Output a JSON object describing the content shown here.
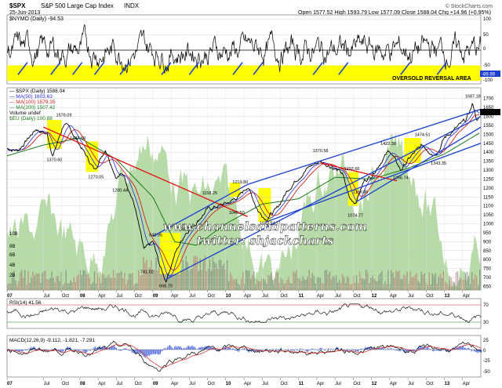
{
  "header": {
    "symbol": "$SPX",
    "name": "S&P 500 Large Cap Index",
    "exchange": "INDX",
    "date": "25-Jun-2013",
    "ohlc": "Open 1577.52  High 1593.79  Low 1577.09  Close 1588.04  Chg +14.96 (+0.95%)",
    "brand": "© StockCharts.com"
  },
  "nymo": {
    "legend": "$NYMO (Daily) -94.53",
    "ticks": [
      "100",
      "50",
      "0",
      "-50",
      "-100"
    ],
    "zone_label": "OVERSOLD REVERSAL AREA",
    "level_label": "-89.99"
  },
  "annotation": {
    "lines": [
      "NYMO Daily - OF THE LAST 22 NYMO LOWS IN THE REVERSAL ZONE SINCE THE START OF",
      "2007, 10 SHOWED MARKED POSITIVE DIVERGENCE AT THE LOW",
      "THE CURRENT LOW IS ALSO SHOWING VERY MARKED POSITIVE DIVERGENCE AND ALL OF",
      "THE LOWS WITH POSITIVE DIVERGENCE DELIVERED STRONG BOUNCES",
      "THE LAST THREE OF THESE LOWS WERE THE MAIN LOWS IN 2010, 2011 AND 2012"
    ],
    "watermark1": "www.channelsandpatterns.com",
    "watermark2": "twitter: shjackcharts"
  },
  "legend": {
    "l1": "— $SPX (Daily) 1588.04",
    "l2": "— MA(50) 1603.63",
    "l3": "— MA(100) 1579.35",
    "l4": "— MA(200) 1507.42",
    "l5": "Volume undef",
    "l6": "$EU (Daily) 100.88"
  },
  "price_labels": [
    {
      "text": "1576.09",
      "date": 2007.78,
      "price": 1600
    },
    {
      "text": "1370.60",
      "date": 2007.65,
      "price": 1350
    },
    {
      "text": "1447.69",
      "date": 2007.97,
      "price": 1470
    },
    {
      "text": "1270.05",
      "date": 2008.22,
      "price": 1255
    },
    {
      "text": "1200.44",
      "date": 2008.55,
      "price": 1180
    },
    {
      "text": "843.95",
      "date": 2009.04,
      "price": 930
    },
    {
      "text": "741.02",
      "date": 2008.92,
      "price": 725
    },
    {
      "text": "666.79",
      "date": 2009.18,
      "price": 645
    },
    {
      "text": "946.32",
      "date": 2009.45,
      "price": 960
    },
    {
      "text": "1158.25",
      "date": 2009.78,
      "price": 1165
    },
    {
      "text": "1219.80",
      "date": 2010.2,
      "price": 1225
    },
    {
      "text": "1040.50",
      "date": 2010.15,
      "price": 1055
    },
    {
      "text": "1010.91",
      "date": 2010.57,
      "price": 995
    },
    {
      "text": "1370.58",
      "date": 2011.3,
      "price": 1400
    },
    {
      "text": "1292.66",
      "date": 2011.73,
      "price": 1300
    },
    {
      "text": "1158.66",
      "date": 2011.85,
      "price": 1170
    },
    {
      "text": "1074.77",
      "date": 2011.78,
      "price": 1040
    },
    {
      "text": "1422.38",
      "date": 2012.23,
      "price": 1440
    },
    {
      "text": "1266.74",
      "date": 2012.4,
      "price": 1250
    },
    {
      "text": "1474.51",
      "date": 2012.7,
      "price": 1490
    },
    {
      "text": "1343.35",
      "date": 2012.92,
      "price": 1330
    },
    {
      "text": "1687.18",
      "date": 2013.39,
      "price": 1705
    }
  ],
  "rsi": {
    "legend": "RSI(14) 41.56",
    "ticks": [
      "70",
      "30"
    ]
  },
  "macd": {
    "legend": "MACD(12,26,9) -9.112, -1.821, -7.291",
    "ticks": [
      "25",
      "0",
      "-25",
      "-50"
    ]
  },
  "volume_ticks": [
    "10B",
    "8B",
    "6B",
    "4B",
    "2B"
  ],
  "x_axis": [
    "07",
    "Jul",
    "Oct",
    "08",
    "Apr",
    "Jul",
    "Oct",
    "09",
    "Apr",
    "Jul",
    "Oct",
    "10",
    "Apr",
    "Jul",
    "Oct",
    "11",
    "Apr",
    "Jul",
    "Oct",
    "12",
    "Apr",
    "Jul",
    "Oct",
    "13",
    "Apr"
  ],
  "chart_data": {
    "type": "line",
    "title": "$SPX S&P 500 Large Cap Index INDX",
    "price_axis": {
      "ticks": [
        1700,
        1650,
        1600,
        1550,
        1500,
        1450,
        1400,
        1350,
        1300,
        1250,
        1200,
        1150,
        1100,
        1050,
        1000,
        950,
        900,
        850,
        800,
        750,
        700,
        650
      ],
      "ylim": [
        630,
        1760
      ]
    },
    "x_range": [
      2007.0,
      2013.5
    ],
    "series": [
      {
        "name": "$SPX (Daily) 1588.04",
        "x": [
          2007.0,
          2007.15,
          2007.4,
          2007.55,
          2007.63,
          2007.78,
          2007.88,
          2008.0,
          2008.2,
          2008.35,
          2008.5,
          2008.6,
          2008.75,
          2008.88,
          2009.0,
          2009.1,
          2009.18,
          2009.3,
          2009.45,
          2009.6,
          2009.75,
          2009.9,
          2010.05,
          2010.2,
          2010.3,
          2010.45,
          2010.55,
          2010.7,
          2010.85,
          2011.0,
          2011.15,
          2011.3,
          2011.45,
          2011.6,
          2011.7,
          2011.78,
          2011.9,
          2012.0,
          2012.15,
          2012.25,
          2012.4,
          2012.55,
          2012.7,
          2012.85,
          2012.92,
          2013.0,
          2013.15,
          2013.3,
          2013.39,
          2013.45,
          2013.48
        ],
        "y": [
          1420,
          1410,
          1530,
          1500,
          1380,
          1560,
          1520,
          1440,
          1300,
          1420,
          1260,
          1280,
          1100,
          850,
          900,
          760,
          680,
          830,
          950,
          1010,
          1080,
          1100,
          1120,
          1160,
          1210,
          1070,
          1030,
          1080,
          1190,
          1260,
          1320,
          1350,
          1320,
          1280,
          1140,
          1120,
          1240,
          1270,
          1360,
          1410,
          1300,
          1380,
          1440,
          1390,
          1410,
          1480,
          1530,
          1580,
          1670,
          1575,
          1588
        ]
      },
      {
        "name": "MA(200) 1507.42",
        "x": [
          2007.0,
          2007.5,
          2008.0,
          2008.5,
          2009.0,
          2009.3,
          2009.6,
          2010.0,
          2010.5,
          2011.0,
          2011.5,
          2012.0,
          2012.5,
          2013.0,
          2013.48
        ],
        "y": [
          1380,
          1440,
          1480,
          1360,
          1150,
          900,
          880,
          1000,
          1110,
          1140,
          1260,
          1250,
          1310,
          1390,
          1507
        ]
      }
    ],
    "nymo_axis": {
      "ylim": [
        -110,
        115
      ],
      "zone": [
        -100,
        -50
      ]
    },
    "nymo_low_markers": [
      2007.15,
      2007.6,
      2007.9,
      2008.2,
      2008.55,
      2009.12,
      2009.5,
      2010.1,
      2010.38,
      2011.2,
      2011.55,
      2012.4,
      2012.9
    ]
  }
}
